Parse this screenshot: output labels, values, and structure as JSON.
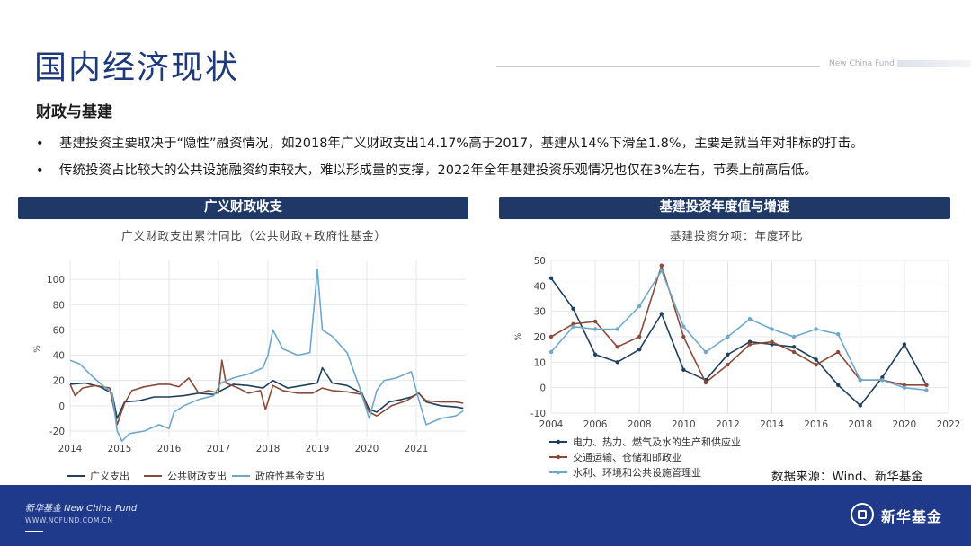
{
  "slide": {
    "title": "国内经济现状",
    "brand_en": "New China Fund",
    "section": "财政与基建",
    "bullets": [
      "基建投资主要取决于“隐性”融资情况，如2018年广义财政支出14.17%高于2017，基建从14%下滑至1.8%，主要是就当年对非标的打击。",
      "传统投资占比较大的公共设施融资约束较大，难以形成量的支撑，2022年全年基建投资乐观情况也仅在3%左右，节奏上前高后低。"
    ],
    "source": "数据来源：Wind、新华基金"
  },
  "footer": {
    "brand": "新华基金 New China Fund",
    "url": "WWW.NCFUND.COM.CN",
    "logo_text": "新华基金"
  },
  "panels": [
    {
      "header": "广义财政收支",
      "subtitle": "广义财政支出累计同比（公共财政+政府性基金）"
    },
    {
      "header": "基建投资年度值与增速",
      "subtitle": "基建投资分项：年度环比"
    }
  ],
  "chart_data": [
    {
      "type": "line",
      "title": "广义财政支出累计同比（公共财政+政府性基金）",
      "ylabel": "%",
      "xlabel": "",
      "xlim": [
        2014.0,
        2022.0
      ],
      "ylim": [
        -25,
        115
      ],
      "yticks": [
        -20,
        0,
        20,
        40,
        60,
        80,
        100
      ],
      "xticks": [
        2014,
        2015,
        2016,
        2017,
        2018,
        2019,
        2020,
        2021
      ],
      "grid": true,
      "legend": "bottom",
      "series": [
        {
          "name": "广义支出",
          "color": "#1f3f5b",
          "points": [
            [
              2014.0,
              17
            ],
            [
              2014.3,
              18
            ],
            [
              2014.6,
              15
            ],
            [
              2014.85,
              10
            ],
            [
              2014.95,
              -10
            ],
            [
              2015.1,
              3
            ],
            [
              2015.4,
              4
            ],
            [
              2015.7,
              7
            ],
            [
              2016.0,
              7
            ],
            [
              2016.3,
              8
            ],
            [
              2016.6,
              10
            ],
            [
              2016.9,
              9
            ],
            [
              2017.05,
              12
            ],
            [
              2017.3,
              17
            ],
            [
              2017.6,
              16
            ],
            [
              2017.9,
              14
            ],
            [
              2018.1,
              20
            ],
            [
              2018.4,
              14
            ],
            [
              2018.7,
              16
            ],
            [
              2019.0,
              18
            ],
            [
              2019.1,
              30
            ],
            [
              2019.3,
              18
            ],
            [
              2019.6,
              16
            ],
            [
              2019.9,
              10
            ],
            [
              2020.05,
              -3
            ],
            [
              2020.2,
              -5
            ],
            [
              2020.45,
              3
            ],
            [
              2020.7,
              5
            ],
            [
              2020.9,
              7
            ],
            [
              2021.05,
              10
            ],
            [
              2021.2,
              3
            ],
            [
              2021.5,
              0
            ],
            [
              2021.8,
              -1
            ],
            [
              2021.95,
              -2
            ]
          ]
        },
        {
          "name": "公共财政支出",
          "color": "#8a4a3a",
          "points": [
            [
              2014.0,
              17
            ],
            [
              2014.1,
              8
            ],
            [
              2014.25,
              14
            ],
            [
              2014.5,
              16
            ],
            [
              2014.8,
              14
            ],
            [
              2014.95,
              -15
            ],
            [
              2015.1,
              2
            ],
            [
              2015.25,
              12
            ],
            [
              2015.5,
              15
            ],
            [
              2015.8,
              17
            ],
            [
              2016.0,
              17
            ],
            [
              2016.2,
              15
            ],
            [
              2016.4,
              22
            ],
            [
              2016.6,
              10
            ],
            [
              2016.8,
              12
            ],
            [
              2017.0,
              10
            ],
            [
              2017.07,
              36
            ],
            [
              2017.15,
              18
            ],
            [
              2017.4,
              14
            ],
            [
              2017.6,
              10
            ],
            [
              2017.85,
              12
            ],
            [
              2017.95,
              -3
            ],
            [
              2018.1,
              16
            ],
            [
              2018.3,
              12
            ],
            [
              2018.6,
              10
            ],
            [
              2018.9,
              10
            ],
            [
              2019.1,
              14
            ],
            [
              2019.3,
              12
            ],
            [
              2019.6,
              11
            ],
            [
              2019.9,
              9
            ],
            [
              2020.05,
              -5
            ],
            [
              2020.2,
              -8
            ],
            [
              2020.5,
              0
            ],
            [
              2020.8,
              4
            ],
            [
              2021.05,
              10
            ],
            [
              2021.2,
              4
            ],
            [
              2021.5,
              3
            ],
            [
              2021.8,
              3
            ],
            [
              2021.95,
              2
            ]
          ]
        },
        {
          "name": "政府性基金支出",
          "color": "#6fa8c8",
          "points": [
            [
              2014.0,
              36
            ],
            [
              2014.2,
              33
            ],
            [
              2014.4,
              25
            ],
            [
              2014.6,
              18
            ],
            [
              2014.85,
              10
            ],
            [
              2014.95,
              -20
            ],
            [
              2015.05,
              -28
            ],
            [
              2015.2,
              -22
            ],
            [
              2015.5,
              -20
            ],
            [
              2015.8,
              -15
            ],
            [
              2016.0,
              -18
            ],
            [
              2016.1,
              -5
            ],
            [
              2016.3,
              0
            ],
            [
              2016.6,
              5
            ],
            [
              2016.9,
              8
            ],
            [
              2017.05,
              18
            ],
            [
              2017.3,
              22
            ],
            [
              2017.6,
              25
            ],
            [
              2017.9,
              30
            ],
            [
              2018.0,
              40
            ],
            [
              2018.1,
              60
            ],
            [
              2018.3,
              45
            ],
            [
              2018.6,
              40
            ],
            [
              2018.85,
              42
            ],
            [
              2019.0,
              108
            ],
            [
              2019.1,
              60
            ],
            [
              2019.3,
              55
            ],
            [
              2019.6,
              42
            ],
            [
              2019.85,
              15
            ],
            [
              2020.05,
              -10
            ],
            [
              2020.2,
              12
            ],
            [
              2020.35,
              20
            ],
            [
              2020.6,
              22
            ],
            [
              2020.9,
              27
            ],
            [
              2021.05,
              5
            ],
            [
              2021.2,
              -15
            ],
            [
              2021.5,
              -10
            ],
            [
              2021.8,
              -8
            ],
            [
              2021.95,
              -4
            ]
          ]
        }
      ]
    },
    {
      "type": "line",
      "title": "基建投资分项：年度环比",
      "ylabel": "%",
      "xlabel": "",
      "xlim": [
        2004,
        2022
      ],
      "ylim": [
        -10,
        50
      ],
      "yticks": [
        -10,
        0,
        10,
        20,
        30,
        40,
        50
      ],
      "xticks": [
        2004,
        2006,
        2008,
        2010,
        2012,
        2014,
        2016,
        2018,
        2020,
        2022
      ],
      "grid": true,
      "legend": "bottom-left",
      "series": [
        {
          "name": "电力、热力、燃气及水的生产和供应业",
          "color": "#1f3f5b",
          "points": [
            [
              2004,
              43
            ],
            [
              2005,
              31
            ],
            [
              2006,
              13
            ],
            [
              2007,
              10
            ],
            [
              2008,
              15
            ],
            [
              2009,
              29
            ],
            [
              2010,
              7
            ],
            [
              2011,
              3
            ],
            [
              2012,
              13
            ],
            [
              2013,
              18
            ],
            [
              2014,
              17
            ],
            [
              2015,
              16
            ],
            [
              2016,
              11
            ],
            [
              2017,
              1
            ],
            [
              2018,
              -7
            ],
            [
              2019,
              4
            ],
            [
              2020,
              17
            ],
            [
              2021,
              1
            ]
          ]
        },
        {
          "name": "交通运输、仓储和邮政业",
          "color": "#8a4a3a",
          "points": [
            [
              2004,
              20
            ],
            [
              2005,
              25
            ],
            [
              2006,
              26
            ],
            [
              2007,
              16
            ],
            [
              2008,
              20
            ],
            [
              2009,
              48
            ],
            [
              2010,
              20
            ],
            [
              2011,
              2
            ],
            [
              2012,
              9
            ],
            [
              2013,
              17
            ],
            [
              2014,
              18
            ],
            [
              2015,
              14
            ],
            [
              2016,
              9
            ],
            [
              2017,
              14
            ],
            [
              2018,
              3
            ],
            [
              2019,
              3
            ],
            [
              2020,
              1
            ],
            [
              2021,
              1
            ]
          ]
        },
        {
          "name": "水利、环境和公共设施管理业",
          "color": "#6fa8c8",
          "points": [
            [
              2004,
              14
            ],
            [
              2005,
              24
            ],
            [
              2006,
              23
            ],
            [
              2007,
              23
            ],
            [
              2008,
              32
            ],
            [
              2009,
              46
            ],
            [
              2010,
              24
            ],
            [
              2011,
              14
            ],
            [
              2012,
              20
            ],
            [
              2013,
              27
            ],
            [
              2014,
              23
            ],
            [
              2015,
              20
            ],
            [
              2016,
              23
            ],
            [
              2017,
              21
            ],
            [
              2018,
              3
            ],
            [
              2019,
              3
            ],
            [
              2020,
              0
            ],
            [
              2021,
              -1
            ]
          ]
        }
      ]
    }
  ]
}
